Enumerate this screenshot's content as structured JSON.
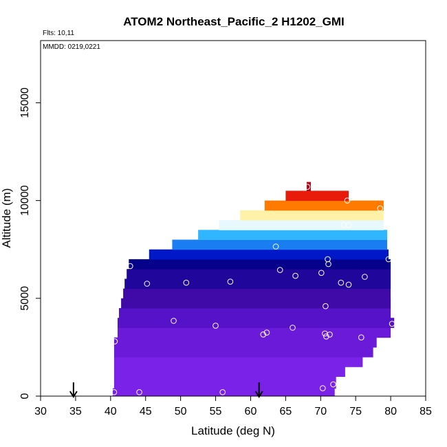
{
  "chart_data": {
    "type": "heatmap",
    "title": "ATOM2 Northeast_Pacific_2 H1202_GMI",
    "flights_note": "Flts: 10,11",
    "date_note": "MMDD: 0219,0221",
    "xlabel": "Latitude (deg N)",
    "ylabel": "Altitude (m)",
    "xlim": [
      30,
      85
    ],
    "ylim": [
      0,
      18000
    ],
    "x_ticks": [
      "30",
      "35",
      "40",
      "45",
      "50",
      "55",
      "60",
      "65",
      "70",
      "75",
      "80",
      "85"
    ],
    "y_ticks": [
      "0",
      "5000",
      "10000",
      "15000"
    ],
    "grid": false,
    "color_levels": [
      "#7a22e8",
      "#6a1ad8",
      "#5512c8",
      "#3f0aa8",
      "#20069a",
      "#06018a",
      "#0018c8",
      "#1a7ef2",
      "#2fb6ff",
      "#e8f8ff",
      "#fff2a8",
      "#ffc81e",
      "#ff7a00",
      "#e81a0a",
      "#b00818"
    ],
    "curtain_bands": [
      {
        "alt": [
          0,
          400
        ],
        "lat": [
          40.3,
          72
        ],
        "level": 0
      },
      {
        "alt": [
          400,
          1000
        ],
        "lat": [
          40.5,
          72.2
        ],
        "level": 0
      },
      {
        "alt": [
          1000,
          1500
        ],
        "lat": [
          40.5,
          73.5
        ],
        "level": 0
      },
      {
        "alt": [
          1500,
          2000
        ],
        "lat": [
          40.5,
          76
        ],
        "level": 0
      },
      {
        "alt": [
          2000,
          2500
        ],
        "lat": [
          40.5,
          77.5
        ],
        "level": 1
      },
      {
        "alt": [
          2500,
          3000
        ],
        "lat": [
          40.5,
          78
        ],
        "level": 1
      },
      {
        "alt": [
          3000,
          3500
        ],
        "lat": [
          41,
          80
        ],
        "level": 1
      },
      {
        "alt": [
          3500,
          4000
        ],
        "lat": [
          41,
          80.5
        ],
        "level": 2
      },
      {
        "alt": [
          4000,
          4500
        ],
        "lat": [
          41.2,
          80
        ],
        "level": 2
      },
      {
        "alt": [
          4500,
          5000
        ],
        "lat": [
          41.5,
          80
        ],
        "level": 3
      },
      {
        "alt": [
          5000,
          5500
        ],
        "lat": [
          41.8,
          80
        ],
        "level": 3
      },
      {
        "alt": [
          5500,
          6000
        ],
        "lat": [
          42,
          80
        ],
        "level": 4
      },
      {
        "alt": [
          6000,
          6500
        ],
        "lat": [
          42.3,
          80
        ],
        "level": 4
      },
      {
        "alt": [
          6500,
          7000
        ],
        "lat": [
          42.6,
          80
        ],
        "level": 5
      },
      {
        "alt": [
          7000,
          7500
        ],
        "lat": [
          45.5,
          79.7
        ],
        "level": 6
      },
      {
        "alt": [
          7500,
          8000
        ],
        "lat": [
          48.8,
          79.5
        ],
        "level": 7
      },
      {
        "alt": [
          8000,
          8500
        ],
        "lat": [
          52.5,
          79.5
        ],
        "level": 8
      },
      {
        "alt": [
          8500,
          9000
        ],
        "lat": [
          55.5,
          79
        ],
        "level": 9
      },
      {
        "alt": [
          9000,
          9500
        ],
        "lat": [
          58.5,
          79
        ],
        "level": 10
      },
      {
        "alt": [
          9500,
          10000
        ],
        "lat": [
          62,
          79
        ],
        "level": 12
      },
      {
        "alt": [
          10000,
          10500
        ],
        "lat": [
          65,
          74
        ],
        "level": 13
      },
      {
        "alt": [
          10500,
          10950
        ],
        "lat": [
          68,
          68.6
        ],
        "level": 14
      }
    ],
    "sample_points": [
      {
        "lat": 40.5,
        "alt": 200
      },
      {
        "lat": 44.1,
        "alt": 200
      },
      {
        "lat": 56,
        "alt": 200
      },
      {
        "lat": 70.3,
        "alt": 400
      },
      {
        "lat": 71.8,
        "alt": 600
      },
      {
        "lat": 40.6,
        "alt": 2800
      },
      {
        "lat": 49,
        "alt": 3850
      },
      {
        "lat": 55,
        "alt": 3600
      },
      {
        "lat": 61.8,
        "alt": 3150
      },
      {
        "lat": 62.3,
        "alt": 3250
      },
      {
        "lat": 66,
        "alt": 3500
      },
      {
        "lat": 70.6,
        "alt": 3200
      },
      {
        "lat": 71.3,
        "alt": 3150
      },
      {
        "lat": 70.8,
        "alt": 3050
      },
      {
        "lat": 75.8,
        "alt": 3000
      },
      {
        "lat": 80.2,
        "alt": 3700
      },
      {
        "lat": 70.7,
        "alt": 4600
      },
      {
        "lat": 45.2,
        "alt": 5750
      },
      {
        "lat": 50.8,
        "alt": 5800
      },
      {
        "lat": 57.1,
        "alt": 5850
      },
      {
        "lat": 72.9,
        "alt": 5800
      },
      {
        "lat": 74,
        "alt": 5700
      },
      {
        "lat": 76.3,
        "alt": 6100
      },
      {
        "lat": 66.4,
        "alt": 6150
      },
      {
        "lat": 70.1,
        "alt": 6300
      },
      {
        "lat": 64.2,
        "alt": 6450
      },
      {
        "lat": 42.8,
        "alt": 6650
      },
      {
        "lat": 71.1,
        "alt": 6750
      },
      {
        "lat": 71,
        "alt": 7000
      },
      {
        "lat": 79.7,
        "alt": 7000
      },
      {
        "lat": 63.6,
        "alt": 7650
      },
      {
        "lat": 73.3,
        "alt": 8750
      },
      {
        "lat": 74,
        "alt": 8750
      },
      {
        "lat": 73.8,
        "alt": 10000
      },
      {
        "lat": 78.5,
        "alt": 9600
      },
      {
        "lat": 68.1,
        "alt": 10700
      }
    ],
    "arrow_markers": [
      {
        "lat": 34.7
      },
      {
        "lat": 61.2
      }
    ]
  },
  "colors": {
    "axis": "#000000",
    "background": "#ffffff",
    "point_stroke": "#ffffff"
  }
}
